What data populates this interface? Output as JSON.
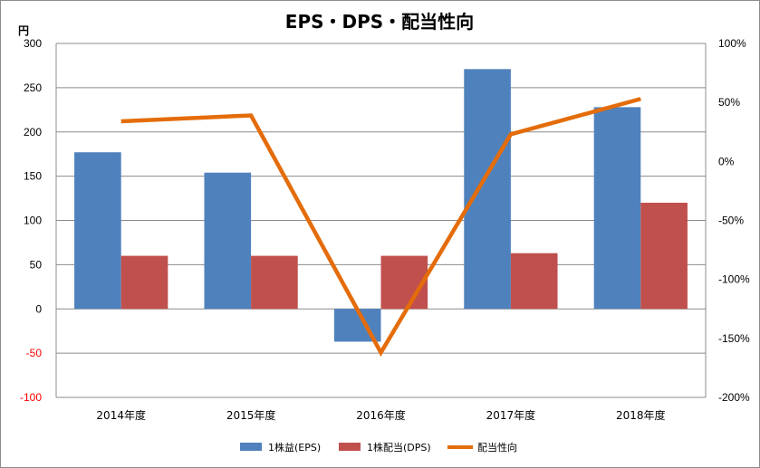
{
  "chart_data": {
    "type": "bar",
    "title": "EPS・DPS・配当性向",
    "left_axis_unit": "円",
    "categories": [
      "2014年度",
      "2015年度",
      "2016年度",
      "2017年度",
      "2018年度"
    ],
    "series": [
      {
        "name": "1株益(EPS)",
        "type": "bar",
        "axis": "left",
        "color": "#4f81bd",
        "values": [
          177,
          154,
          -37,
          271,
          228
        ]
      },
      {
        "name": "1株配当(DPS)",
        "type": "bar",
        "axis": "left",
        "color": "#c0504d",
        "values": [
          60,
          60,
          60,
          63,
          120
        ]
      },
      {
        "name": "配当性向",
        "type": "line",
        "axis": "right",
        "color": "#e46c0a",
        "values": [
          34,
          39,
          -162,
          23,
          53
        ]
      }
    ],
    "left_axis": {
      "min": -100,
      "max": 300,
      "step": 50,
      "ticks": [
        "-100",
        "-50",
        "0",
        "50",
        "100",
        "150",
        "200",
        "250",
        "300"
      ],
      "negative_color": "#ff0000"
    },
    "right_axis": {
      "min": -200,
      "max": 100,
      "step": 50,
      "ticks": [
        "-200%",
        "-150%",
        "-100%",
        "-50%",
        "0%",
        "50%",
        "100%"
      ]
    },
    "grid": true,
    "legend_position": "bottom"
  }
}
